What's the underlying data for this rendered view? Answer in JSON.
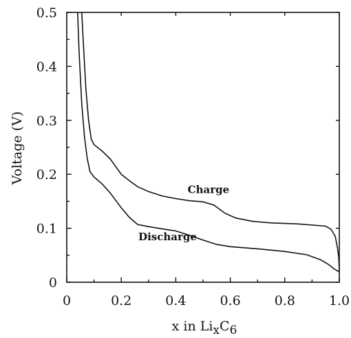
{
  "chart_data": {
    "type": "line",
    "xlabel": {
      "prefix": "x  in  Li",
      "sub1": "x",
      "mid": "C",
      "sub2": "6"
    },
    "ylabel": "Voltage (V)",
    "xlim": [
      0,
      1.0
    ],
    "ylim": [
      0,
      0.5
    ],
    "x_ticks": [
      0,
      0.2,
      0.4,
      0.6,
      0.8,
      1.0
    ],
    "x_tick_labels": [
      "0",
      "0.2",
      "0.4",
      "0.6",
      "0.8",
      "1.0"
    ],
    "y_ticks": [
      0,
      0.1,
      0.2,
      0.3,
      0.4,
      0.5
    ],
    "y_tick_labels": [
      "0",
      "0.1",
      "0.2",
      "0.3",
      "0.4",
      "0.5"
    ],
    "grid": false,
    "series": [
      {
        "name": "Charge",
        "points": [
          [
            0.055,
            0.5
          ],
          [
            0.06,
            0.45
          ],
          [
            0.07,
            0.36
          ],
          [
            0.08,
            0.3
          ],
          [
            0.09,
            0.265
          ],
          [
            0.1,
            0.255
          ],
          [
            0.13,
            0.243
          ],
          [
            0.16,
            0.228
          ],
          [
            0.2,
            0.2
          ],
          [
            0.23,
            0.188
          ],
          [
            0.26,
            0.177
          ],
          [
            0.3,
            0.168
          ],
          [
            0.35,
            0.16
          ],
          [
            0.4,
            0.155
          ],
          [
            0.45,
            0.151
          ],
          [
            0.5,
            0.149
          ],
          [
            0.54,
            0.143
          ],
          [
            0.58,
            0.128
          ],
          [
            0.62,
            0.119
          ],
          [
            0.68,
            0.113
          ],
          [
            0.75,
            0.11
          ],
          [
            0.85,
            0.108
          ],
          [
            0.95,
            0.104
          ],
          [
            0.97,
            0.098
          ],
          [
            0.985,
            0.085
          ],
          [
            0.993,
            0.065
          ],
          [
            0.998,
            0.045
          ],
          [
            1.0,
            0.02
          ]
        ]
      },
      {
        "name": "Discharge",
        "points": [
          [
            0.04,
            0.5
          ],
          [
            0.045,
            0.43
          ],
          [
            0.055,
            0.33
          ],
          [
            0.065,
            0.27
          ],
          [
            0.075,
            0.23
          ],
          [
            0.085,
            0.205
          ],
          [
            0.1,
            0.195
          ],
          [
            0.13,
            0.182
          ],
          [
            0.16,
            0.165
          ],
          [
            0.2,
            0.138
          ],
          [
            0.23,
            0.12
          ],
          [
            0.26,
            0.107
          ],
          [
            0.3,
            0.103
          ],
          [
            0.35,
            0.099
          ],
          [
            0.4,
            0.095
          ],
          [
            0.45,
            0.087
          ],
          [
            0.5,
            0.078
          ],
          [
            0.55,
            0.07
          ],
          [
            0.6,
            0.066
          ],
          [
            0.7,
            0.062
          ],
          [
            0.8,
            0.057
          ],
          [
            0.88,
            0.051
          ],
          [
            0.93,
            0.042
          ],
          [
            0.96,
            0.033
          ],
          [
            0.98,
            0.025
          ],
          [
            1.0,
            0.019
          ]
        ]
      }
    ],
    "annotations": [
      {
        "text": "Charge",
        "x": 0.52,
        "y": 0.165
      },
      {
        "text": "Discharge",
        "x": 0.37,
        "y": 0.078
      }
    ]
  }
}
